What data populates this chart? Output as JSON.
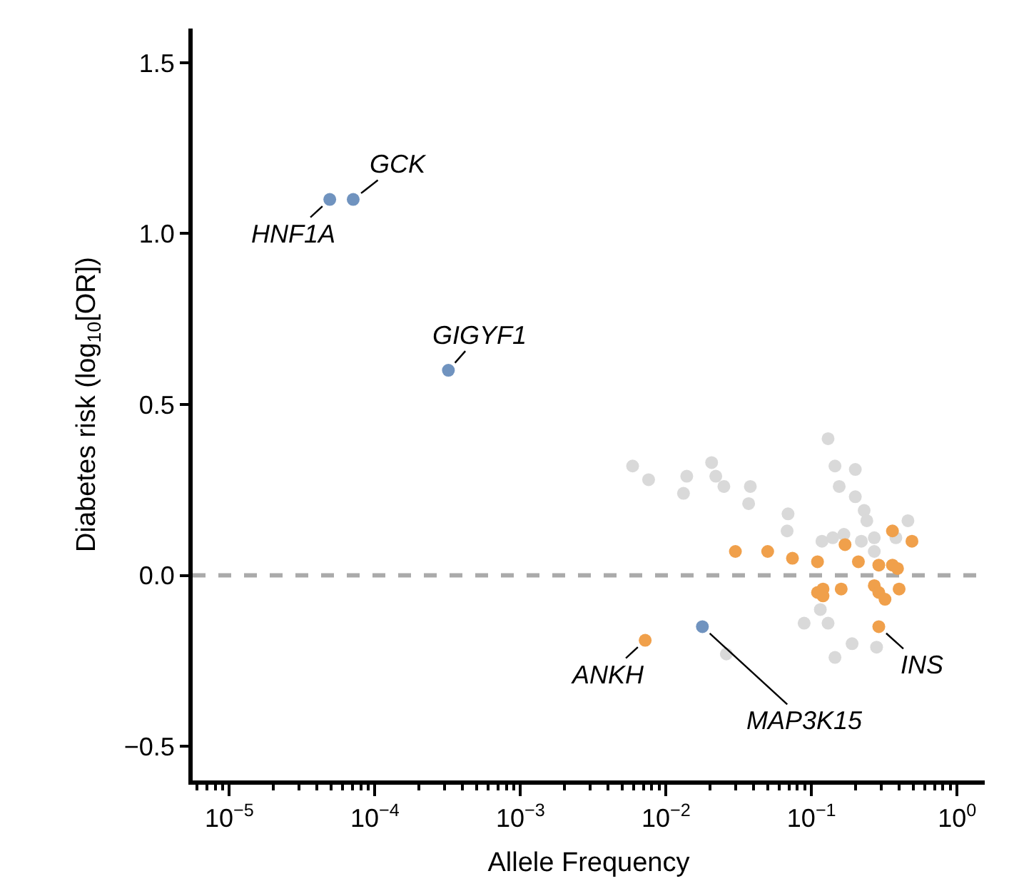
{
  "chart_data": {
    "type": "scatter",
    "xlabel": "Allele Frequency",
    "ylabel": "Diabetes risk (log$_{10}$[OR])",
    "series": [
      {
        "color": "#d9d9d9",
        "x": [
          0.0059,
          0.0076,
          0.0139,
          0.0132,
          0.0206,
          0.022,
          0.025,
          0.038,
          0.037,
          0.069,
          0.068,
          0.13,
          0.145,
          0.2,
          0.155,
          0.2,
          0.23,
          0.24,
          0.46,
          0.118,
          0.14,
          0.167,
          0.22,
          0.27,
          0.27,
          0.38,
          0.115,
          0.089,
          0.13,
          0.026,
          0.19,
          0.145,
          0.28
        ],
        "values": [
          0.32,
          0.28,
          0.29,
          0.24,
          0.33,
          0.29,
          0.26,
          0.26,
          0.21,
          0.18,
          0.13,
          0.4,
          0.32,
          0.31,
          0.26,
          0.23,
          0.19,
          0.16,
          0.16,
          0.1,
          0.11,
          0.12,
          0.1,
          0.11,
          0.07,
          0.11,
          -0.1,
          -0.14,
          -0.14,
          -0.23,
          -0.2,
          -0.24,
          -0.21
        ]
      },
      {
        "color": "#f0a04b",
        "x": [
          0.03,
          0.05,
          0.074,
          0.11,
          0.17,
          0.21,
          0.29,
          0.36,
          0.49,
          0.36,
          0.39,
          0.11,
          0.12,
          0.12,
          0.16,
          0.27,
          0.29,
          0.32,
          0.4,
          0.0072,
          0.29
        ],
        "values": [
          0.07,
          0.07,
          0.05,
          0.04,
          0.09,
          0.04,
          0.03,
          0.13,
          0.1,
          0.03,
          0.02,
          -0.05,
          -0.04,
          -0.06,
          -0.04,
          -0.03,
          -0.05,
          -0.07,
          -0.04,
          -0.19,
          -0.15
        ]
      },
      {
        "color": "#7093bf",
        "x": [
          4.9e-05,
          7.1e-05,
          0.00032,
          0.0178
        ],
        "values": [
          1.1,
          1.1,
          0.6,
          -0.15
        ]
      }
    ],
    "annotations": [
      {
        "text": "HNF1A",
        "x": 4.9e-05,
        "y": 1.1
      },
      {
        "text": "GCK",
        "x": 7.1e-05,
        "y": 1.1
      },
      {
        "text": "GIGYF1",
        "x": 0.00032,
        "y": 0.6
      },
      {
        "text": "ANKH",
        "x": 0.0072,
        "y": -0.19
      },
      {
        "text": "MAP3K15",
        "x": 0.0178,
        "y": -0.15
      },
      {
        "text": "INS",
        "x": 0.29,
        "y": -0.15
      }
    ],
    "ref_lines": [
      {
        "axis": "y",
        "value": 0,
        "color": "#aaaaaa",
        "line_style": "dashed"
      }
    ],
    "log": "x",
    "xlim": [
      5.6e-06,
      1.55
    ],
    "ylim": [
      -0.6,
      1.6
    ],
    "xticks": [
      {
        "value": 1e-05,
        "label": "10$^{−5}$"
      },
      {
        "value": 0.0001,
        "label": "10$^{−4}$"
      },
      {
        "value": 0.001,
        "label": "10$^{−3}$"
      },
      {
        "value": 0.01,
        "label": "10$^{−2}$"
      },
      {
        "value": 0.1,
        "label": "10$^{−1}$"
      },
      {
        "value": 1,
        "label": "10$^{0}$"
      },
      {
        "value": 6e-06,
        "label": null
      },
      {
        "value": 7e-06,
        "label": null
      },
      {
        "value": 8e-06,
        "label": null
      },
      {
        "value": 9e-06,
        "label": null
      },
      {
        "value": 2e-05,
        "label": null
      },
      {
        "value": 3e-05,
        "label": null
      },
      {
        "value": 4e-05,
        "label": null
      },
      {
        "value": 5e-05,
        "label": null
      },
      {
        "value": 6e-05,
        "label": null
      },
      {
        "value": 7e-05,
        "label": null
      },
      {
        "value": 8e-05,
        "label": null
      },
      {
        "value": 9e-05,
        "label": null
      },
      {
        "value": 0.0002,
        "label": null
      },
      {
        "value": 0.0003,
        "label": null
      },
      {
        "value": 0.0004,
        "label": null
      },
      {
        "value": 0.0005,
        "label": null
      },
      {
        "value": 0.0006,
        "label": null
      },
      {
        "value": 0.0007,
        "label": null
      },
      {
        "value": 0.0008,
        "label": null
      },
      {
        "value": 0.0009,
        "label": null
      },
      {
        "value": 0.002,
        "label": null
      },
      {
        "value": 0.003,
        "label": null
      },
      {
        "value": 0.004,
        "label": null
      },
      {
        "value": 0.005,
        "label": null
      },
      {
        "value": 0.006,
        "label": null
      },
      {
        "value": 0.007,
        "label": null
      },
      {
        "value": 0.008,
        "label": null
      },
      {
        "value": 0.009,
        "label": null
      },
      {
        "value": 0.02,
        "label": null
      },
      {
        "value": 0.03,
        "label": null
      },
      {
        "value": 0.04,
        "label": null
      },
      {
        "value": 0.05,
        "label": null
      },
      {
        "value": 0.06,
        "label": null
      },
      {
        "value": 0.07,
        "label": null
      },
      {
        "value": 0.08,
        "label": null
      },
      {
        "value": 0.09,
        "label": null
      },
      {
        "value": 0.2,
        "label": null
      },
      {
        "value": 0.3,
        "label": null
      },
      {
        "value": 0.4,
        "label": null
      },
      {
        "value": 0.5,
        "label": null
      },
      {
        "value": 0.6,
        "label": null
      },
      {
        "value": 0.7,
        "label": null
      },
      {
        "value": 0.8,
        "label": null
      },
      {
        "value": 0.9,
        "label": null
      }
    ],
    "yticks": [
      {
        "value": -0.5,
        "label": "−0.5"
      },
      {
        "value": 0,
        "label": "0.0"
      },
      {
        "value": 0.5,
        "label": "0.5"
      },
      {
        "value": 1,
        "label": "1.0"
      },
      {
        "value": 1.5,
        "label": "1.5"
      }
    ],
    "grid": false,
    "marker": "circle"
  }
}
